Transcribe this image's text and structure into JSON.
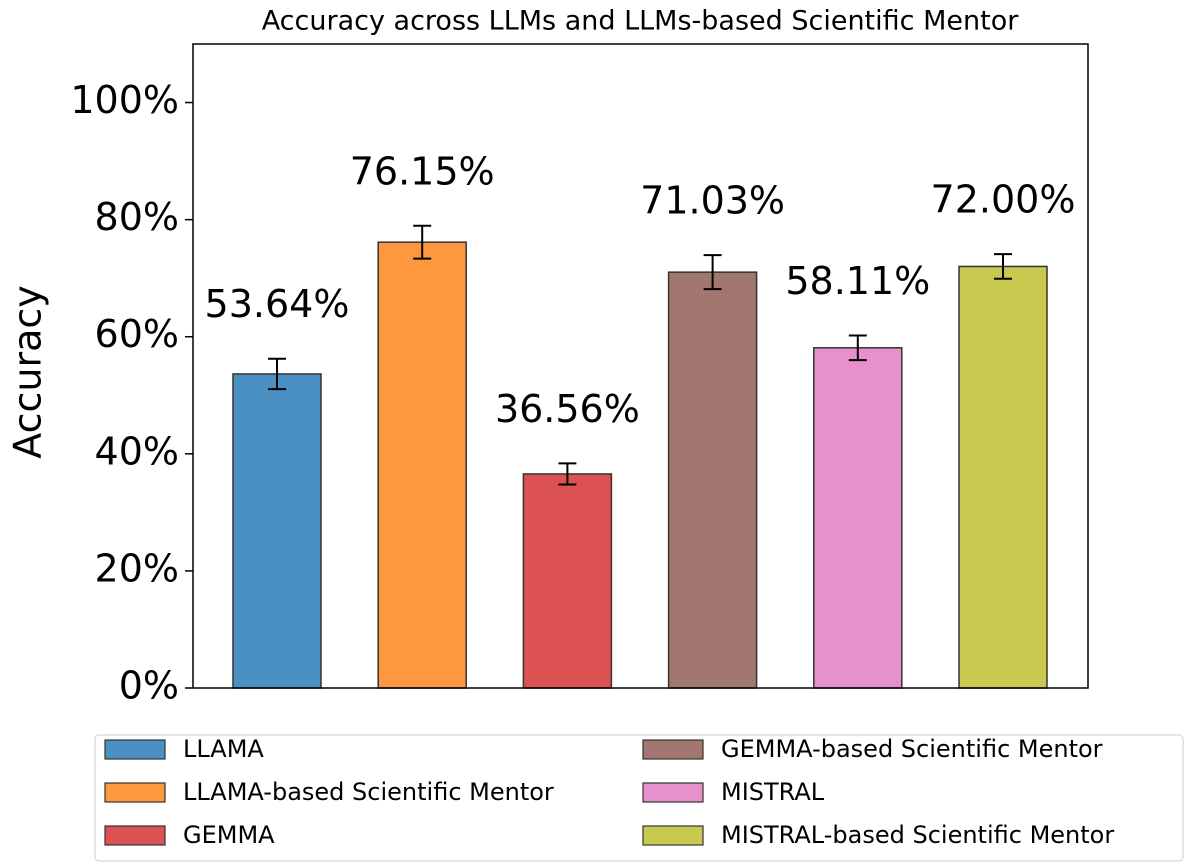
{
  "chart_data": {
    "type": "bar",
    "title": "Accuracy across LLMs and LLMs-based Scientific Mentor",
    "y_label": "Accuracy",
    "ylim": [
      0,
      110
    ],
    "yticks": [
      {
        "value": 0,
        "label": "0%"
      },
      {
        "value": 20,
        "label": "20%"
      },
      {
        "value": 40,
        "label": "40%"
      },
      {
        "value": 60,
        "label": "60%"
      },
      {
        "value": 80,
        "label": "80%"
      },
      {
        "value": 100,
        "label": "100%"
      }
    ],
    "legend": "bottom",
    "series": [
      {
        "name": "LLAMA",
        "color": "#4a90c2",
        "values": [
          53.64
        ],
        "errors": [
          2.6
        ],
        "value_labels": [
          "53.64%"
        ]
      },
      {
        "name": "LLAMA-based Scientific Mentor",
        "color": "#fe983f",
        "values": [
          76.15
        ],
        "errors": [
          2.8
        ],
        "value_labels": [
          "76.15%"
        ]
      },
      {
        "name": "GEMMA",
        "color": "#dc5252",
        "values": [
          36.56
        ],
        "errors": [
          1.8
        ],
        "value_labels": [
          "36.56%"
        ]
      },
      {
        "name": "GEMMA-based Scientific Mentor",
        "color": "#a1776f",
        "values": [
          71.03
        ],
        "errors": [
          2.9
        ],
        "value_labels": [
          "71.03%"
        ]
      },
      {
        "name": "MISTRAL",
        "color": "#e691cc",
        "values": [
          58.11
        ],
        "errors": [
          2.1
        ],
        "value_labels": [
          "58.11%"
        ]
      },
      {
        "name": "MISTRAL-based Scientific Mentor",
        "color": "#c9c94f",
        "values": [
          72.0
        ],
        "errors": [
          2.1
        ],
        "value_labels": [
          "72.00%"
        ]
      }
    ]
  }
}
